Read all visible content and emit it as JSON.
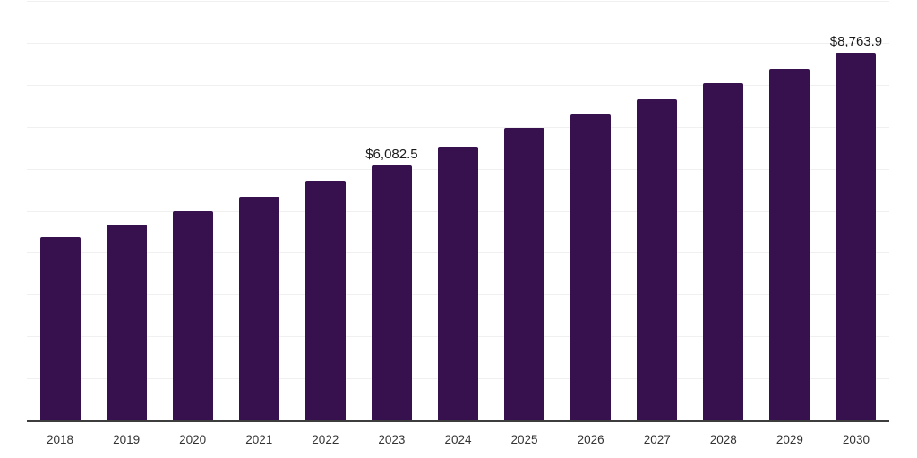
{
  "chart_data": {
    "type": "bar",
    "title": "",
    "xlabel": "",
    "ylabel": "",
    "categories": [
      "2018",
      "2019",
      "2020",
      "2021",
      "2022",
      "2023",
      "2024",
      "2025",
      "2026",
      "2027",
      "2028",
      "2029",
      "2030"
    ],
    "values": [
      4380,
      4680,
      4990,
      5340,
      5710,
      6082.5,
      6520,
      6980,
      7290,
      7650,
      8040,
      8390,
      8763.9
    ],
    "labeled_points": [
      {
        "category": "2023",
        "label": "$6,082.5"
      },
      {
        "category": "2030",
        "label": "$8,763.9"
      }
    ],
    "ylim": [
      0,
      10000
    ],
    "gridline_step": 1000,
    "grid": "horizontal",
    "legend_position": "none",
    "colors": {
      "bar": "#37114E",
      "gridline": "#f0f0f0",
      "axis_line": "#3d3d3d",
      "tick_label": "#333333",
      "data_label": "#1a1a1a",
      "background": "#ffffff"
    }
  }
}
